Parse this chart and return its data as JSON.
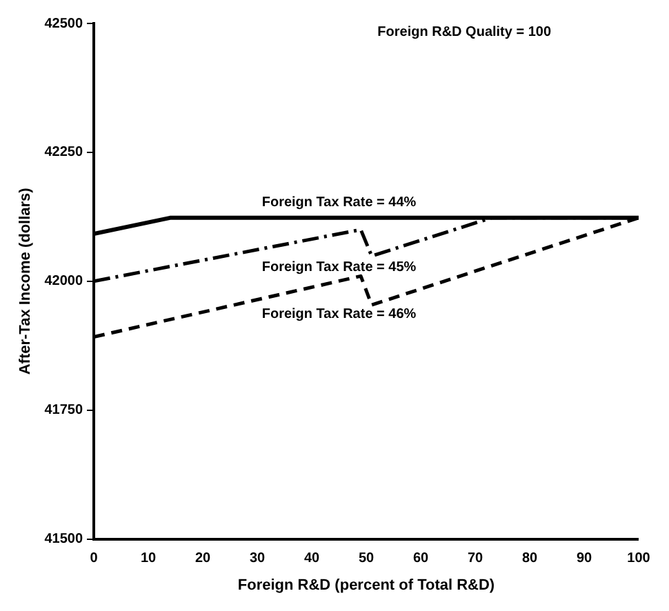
{
  "chart_data": {
    "type": "line",
    "xlabel": "Foreign R&D (percent of Total R&D)",
    "ylabel": "After-Tax Income (dollars)",
    "annotations": [
      "Foreign R&D Quality = 100"
    ],
    "xlim": [
      0,
      100
    ],
    "xticks": [
      0,
      10,
      20,
      30,
      40,
      50,
      60,
      70,
      80,
      90,
      100
    ],
    "ylim": [
      41500,
      42500
    ],
    "yticks": [
      41500,
      41750,
      42000,
      42250,
      42500
    ],
    "grid": false,
    "legend": false,
    "marker": "none",
    "series": [
      {
        "name": "Foreign Tax Rate = 44%",
        "color": "#000000",
        "line_style": "solid",
        "x": [
          0,
          14,
          100
        ],
        "values": [
          42092,
          42123,
          42123
        ]
      },
      {
        "name": "Foreign Tax Rate = 45%",
        "color": "#000000",
        "line_style": "dotted",
        "x": [
          0,
          49,
          51,
          73,
          100
        ],
        "values": [
          42000,
          42100,
          42049,
          42123,
          42123
        ]
      },
      {
        "name": "Foreign Tax Rate = 46%",
        "color": "#000000",
        "line_style": "dashed",
        "x": [
          0,
          49,
          51,
          100
        ],
        "values": [
          41892,
          42010,
          41954,
          42123
        ]
      }
    ]
  }
}
